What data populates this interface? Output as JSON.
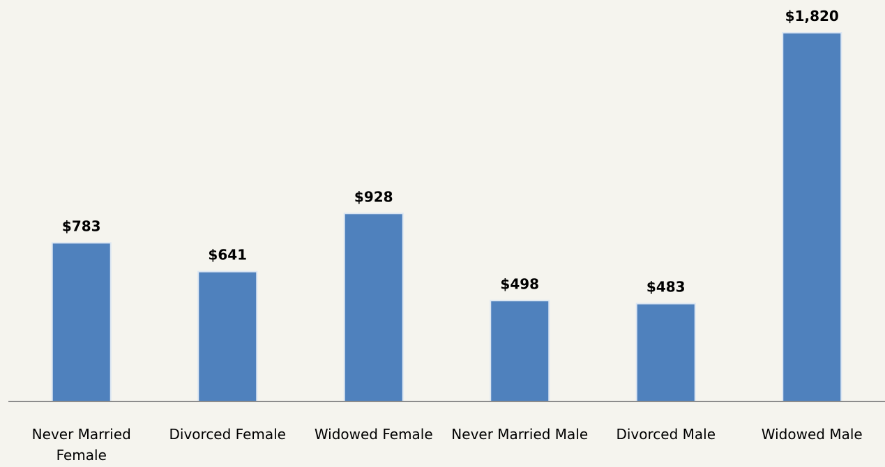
{
  "chart_data": {
    "type": "bar",
    "categories": [
      "Never Married Female",
      "Divorced Female",
      "Widowed Female",
      "Never Married Male",
      "Divorced Male",
      "Widowed Male"
    ],
    "values": [
      783,
      641,
      928,
      498,
      483,
      1820
    ],
    "value_labels": [
      "$783",
      "$641",
      "$928",
      "$498",
      "$483",
      "$1,820"
    ],
    "color": "#4f81bd"
  }
}
